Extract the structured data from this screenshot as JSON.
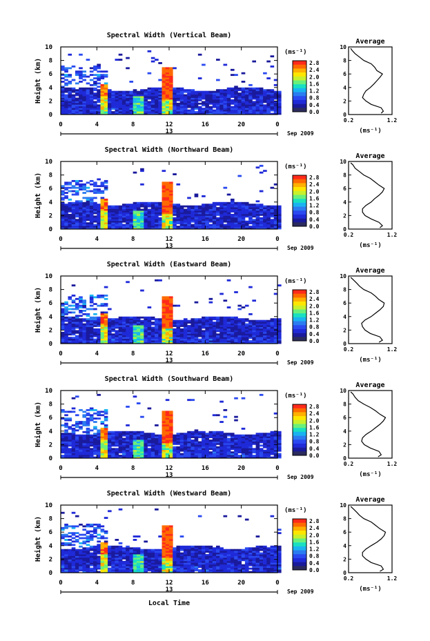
{
  "figure": {
    "bottom_xlabel": "Local Time",
    "colorbar_unit": "(ms⁻¹)",
    "colorbar_labels": [
      "2.8",
      "2.4",
      "2.0",
      "1.6",
      "1.2",
      "0.8",
      "0.4",
      "0.0"
    ],
    "colorbar_colors": [
      "#ff2a1a",
      "#ff6a00",
      "#ffb000",
      "#ffe600",
      "#c8f02c",
      "#6af07a",
      "#19e0c0",
      "#19b4f0",
      "#2b7cf0",
      "#2a4af0",
      "#1f2ad8",
      "#1a1a9c",
      "#2b2b5e"
    ],
    "date_center": "13",
    "date_right": "Sep 2009",
    "profile_unit": "(ms⁻¹)"
  },
  "panels": [
    {
      "title": "Spectral Width (Vertical Beam)",
      "ylabel": "Height (km)",
      "profile_title": "Average"
    },
    {
      "title": "Spectral Width (Northward Beam)",
      "ylabel": "Height (km)",
      "profile_title": "Average"
    },
    {
      "title": "Spectral Width (Eastward Beam)",
      "ylabel": "Height (km)",
      "profile_title": "Average"
    },
    {
      "title": "Spectral Width (Southward Beam)",
      "ylabel": "Height (km)",
      "profile_title": "Average"
    },
    {
      "title": "Spectral Width (Westward Beam)",
      "ylabel": "Height (km)",
      "profile_title": "Average"
    }
  ],
  "chart_data": {
    "type": "heatmap",
    "xlim": [
      0,
      24
    ],
    "ylim": [
      0,
      10
    ],
    "x_ticks": [
      "0",
      "4",
      "8",
      "12",
      "16",
      "20",
      "0"
    ],
    "y_ticks": [
      "0",
      "2",
      "4",
      "6",
      "8",
      "10"
    ],
    "colorbar_range": [
      0.0,
      3.0
    ],
    "profile": {
      "type": "line",
      "xlim": [
        0.2,
        1.2
      ],
      "x_ticks": [
        "0.2",
        "1.2"
      ],
      "y_ticks": [
        "0",
        "2",
        "4",
        "6",
        "8",
        "10"
      ],
      "height_km": [
        0.2,
        0.5,
        1.0,
        1.5,
        2.0,
        2.5,
        3.0,
        3.5,
        4.0,
        4.5,
        5.0,
        5.5,
        6.0,
        6.5,
        7.0,
        7.5,
        8.0,
        8.5,
        9.0,
        9.5,
        9.8
      ],
      "series": [
        {
          "width": [
            0.95,
            1.0,
            0.95,
            0.72,
            0.6,
            0.52,
            0.55,
            0.6,
            0.7,
            0.78,
            0.85,
            0.92,
            0.98,
            0.85,
            0.8,
            0.72,
            0.55,
            0.45,
            0.35,
            0.28,
            0.25
          ]
        },
        {
          "width": [
            0.92,
            0.98,
            0.9,
            0.72,
            0.58,
            0.52,
            0.52,
            0.6,
            0.72,
            0.8,
            0.9,
            0.98,
            1.02,
            0.9,
            0.8,
            0.7,
            0.55,
            0.45,
            0.35,
            0.3,
            0.25
          ]
        },
        {
          "width": [
            0.9,
            0.98,
            0.92,
            0.7,
            0.58,
            0.52,
            0.5,
            0.58,
            0.72,
            0.82,
            0.92,
            1.0,
            1.02,
            0.9,
            0.82,
            0.72,
            0.55,
            0.45,
            0.38,
            0.3,
            0.25
          ]
        },
        {
          "width": [
            0.88,
            0.95,
            0.9,
            0.7,
            0.56,
            0.5,
            0.52,
            0.6,
            0.72,
            0.82,
            0.92,
            1.0,
            1.05,
            0.92,
            0.82,
            0.7,
            0.55,
            0.42,
            0.35,
            0.3,
            0.25
          ]
        },
        {
          "width": [
            0.92,
            1.0,
            0.95,
            0.72,
            0.6,
            0.52,
            0.52,
            0.6,
            0.72,
            0.85,
            0.95,
            1.02,
            1.05,
            0.92,
            0.82,
            0.72,
            0.55,
            0.45,
            0.38,
            0.3,
            0.25
          ]
        }
      ]
    }
  }
}
